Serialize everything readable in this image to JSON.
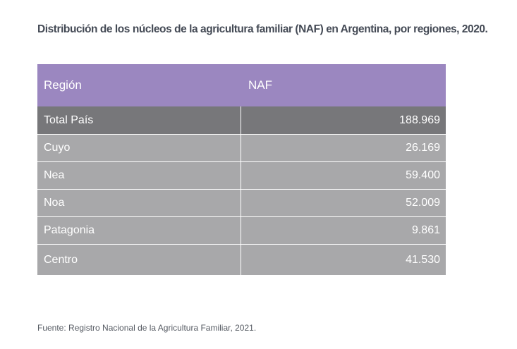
{
  "title": "Distribución de los núcleos de la agricultura familiar (NAF) en Argentina, por regiones, 2020.",
  "table": {
    "headers": [
      "Región",
      "NAF"
    ],
    "total": {
      "region": "Total País",
      "naf": "188.969"
    },
    "rows": [
      {
        "region": "Cuyo",
        "naf": "26.169"
      },
      {
        "region": "Nea",
        "naf": "59.400"
      },
      {
        "region": "Noa",
        "naf": "52.009"
      },
      {
        "region": "Patagonia",
        "naf": "9.861"
      },
      {
        "region": "Centro",
        "naf": "41.530"
      }
    ]
  },
  "source": "Fuente: Registro Nacional de la Agricultura Familiar, 2021.",
  "colors": {
    "header": "#9b87c0",
    "total_row": "#77777a",
    "data_row": "#a8a8aa"
  }
}
